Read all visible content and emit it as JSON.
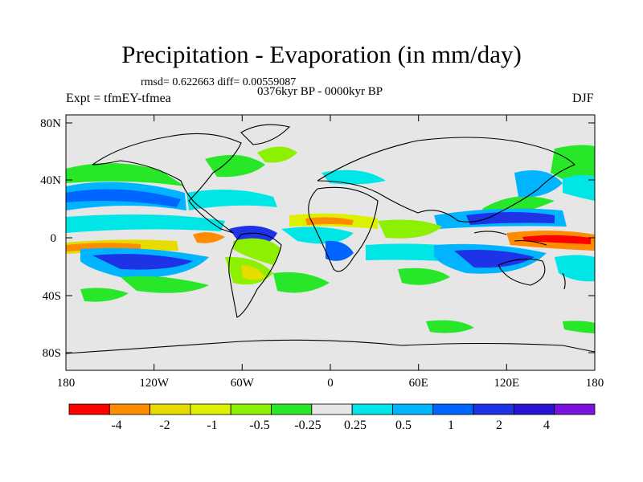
{
  "figure": {
    "title": "Precipitation - Evaporation (in mm/day)",
    "stats": "rmsd= 0.622663 diff= 0.00559087",
    "period": "0376kyr BP - 0000kyr BP",
    "experiment": "Expt = tfmEY-tfmea",
    "season": "DJF"
  },
  "axes": {
    "lat_labels": [
      "80N",
      "40N",
      "0",
      "40S",
      "80S"
    ],
    "lon_labels": [
      "180",
      "120W",
      "60W",
      "0",
      "60E",
      "120E",
      "180"
    ]
  },
  "colorbar": {
    "colors": [
      "#ff0000",
      "#ff8c00",
      "#e6dc00",
      "#dcf000",
      "#8cf000",
      "#28e628",
      "#e6e6e6",
      "#00e6e6",
      "#00b4ff",
      "#0064ff",
      "#1e32e6",
      "#2814d2",
      "#7814dc"
    ],
    "labels": [
      "-4",
      "-2",
      "-1",
      "-0.5",
      "-0.25",
      "0.25",
      "0.5",
      "1",
      "2",
      "4"
    ]
  }
}
